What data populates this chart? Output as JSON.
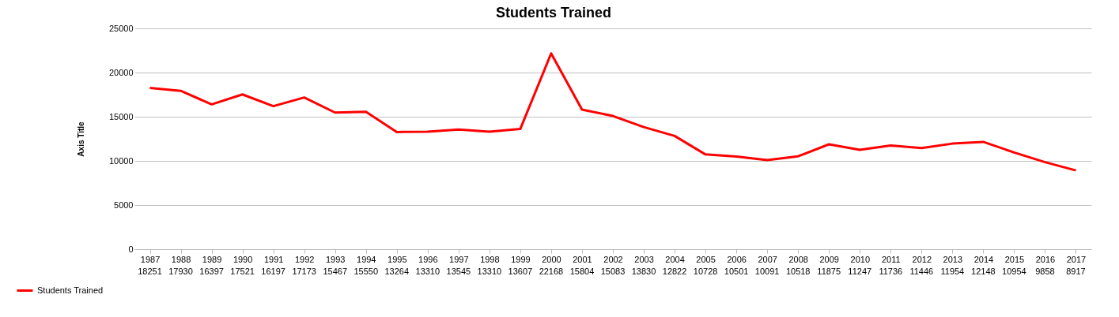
{
  "chart_data": {
    "type": "line",
    "title": "Students Trained",
    "ylabel": "Axis Title",
    "categories": [
      "1987",
      "1988",
      "1989",
      "1990",
      "1991",
      "1992",
      "1993",
      "1994",
      "1995",
      "1996",
      "1997",
      "1998",
      "1999",
      "2000",
      "2001",
      "2002",
      "2003",
      "2004",
      "2005",
      "2006",
      "2007",
      "2008",
      "2009",
      "2010",
      "2011",
      "2012",
      "2013",
      "2014",
      "2015",
      "2016",
      "2017"
    ],
    "series": [
      {
        "name": "Students Trained",
        "color": "#ff0000",
        "values": [
          18251,
          17930,
          16397,
          17521,
          16197,
          17173,
          15467,
          15550,
          13264,
          13310,
          13545,
          13310,
          13607,
          22168,
          15804,
          15083,
          13830,
          12822,
          10728,
          10501,
          10091,
          10518,
          11875,
          11247,
          11736,
          11446,
          11954,
          12148,
          10954,
          9858,
          8917
        ]
      }
    ],
    "ylim": [
      0,
      25000
    ],
    "yticks": [
      0,
      5000,
      10000,
      15000,
      20000,
      25000
    ],
    "grid": "y",
    "legend": "bottom left",
    "data_labels": true,
    "marker": "none",
    "line_style": "solid"
  }
}
